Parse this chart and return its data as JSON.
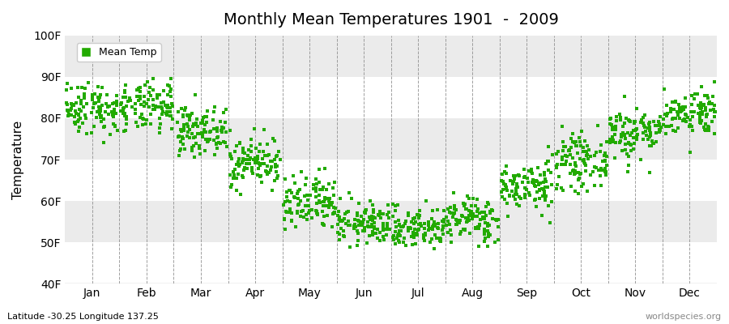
{
  "title": "Monthly Mean Temperatures 1901  -  2009",
  "ylabel": "Temperature",
  "ylim": [
    40,
    100
  ],
  "yticks": [
    40,
    50,
    60,
    70,
    80,
    90,
    100
  ],
  "ytick_labels": [
    "40F",
    "50F",
    "60F",
    "70F",
    "80F",
    "90F",
    "100F"
  ],
  "month_labels": [
    "Jan",
    "Feb",
    "Mar",
    "Apr",
    "May",
    "Jun",
    "Jul",
    "Aug",
    "Sep",
    "Oct",
    "Nov",
    "Dec"
  ],
  "legend_label": "Mean Temp",
  "point_color": "#22AA00",
  "bg_color": "#FFFFFF",
  "band_colors": [
    "#FFFFFF",
    "#EBEBEB"
  ],
  "footer_left": "Latitude -30.25 Longitude 137.25",
  "footer_right": "worldspecies.org",
  "monthly_means": [
    82.5,
    82.5,
    77.0,
    69.5,
    59.0,
    54.5,
    53.5,
    55.5,
    63.5,
    69.5,
    76.5,
    81.5
  ],
  "monthly_stds": [
    3.2,
    3.0,
    2.8,
    3.0,
    3.5,
    2.5,
    2.5,
    2.8,
    3.0,
    3.2,
    3.2,
    2.8
  ],
  "n_years": 109,
  "seed": 42
}
